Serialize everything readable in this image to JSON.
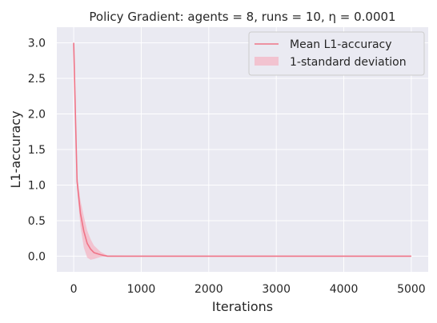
{
  "chart_data": {
    "type": "line",
    "title": "Policy Gradient: agents = 8, runs = 10, η = 0.0001",
    "xlabel": "Iterations",
    "ylabel": "L1-accuracy",
    "xlim": [
      -250,
      5250
    ],
    "ylim": [
      -0.22,
      3.22
    ],
    "xticks": [
      0,
      1000,
      2000,
      3000,
      4000,
      5000
    ],
    "xtick_labels": [
      "0",
      "1000",
      "2000",
      "3000",
      "4000",
      "5000"
    ],
    "yticks": [
      0.0,
      0.5,
      1.0,
      1.5,
      2.0,
      2.5,
      3.0
    ],
    "ytick_labels": [
      "0.0",
      "0.5",
      "1.0",
      "1.5",
      "2.0",
      "2.5",
      "3.0"
    ],
    "grid": true,
    "legend_position": "top-right",
    "colors": {
      "background": "#eaeaf2",
      "grid": "#ffffff",
      "line": "#f07487",
      "band": "#f4b6c4"
    },
    "series": [
      {
        "name": "Mean L1-accuracy",
        "style": "line",
        "x": [
          0,
          25,
          50,
          100,
          150,
          200,
          250,
          300,
          400,
          500,
          1000,
          2000,
          3000,
          4000,
          5000
        ],
        "y": [
          3.0,
          2.0,
          1.05,
          0.6,
          0.35,
          0.18,
          0.1,
          0.05,
          0.02,
          0.0,
          0.0,
          0.0,
          0.0,
          0.0,
          0.0
        ]
      },
      {
        "name": "1-standard deviation",
        "style": "band",
        "x": [
          0,
          25,
          50,
          100,
          150,
          200,
          250,
          300,
          400,
          500,
          1000,
          2000,
          3000,
          4000,
          5000
        ],
        "lower": [
          3.0,
          1.9,
          0.95,
          0.42,
          0.12,
          -0.02,
          -0.05,
          -0.04,
          -0.01,
          0.0,
          0.0,
          0.0,
          0.0,
          0.0,
          0.0
        ],
        "upper": [
          3.0,
          2.1,
          1.15,
          0.78,
          0.56,
          0.36,
          0.24,
          0.15,
          0.06,
          0.01,
          0.0,
          0.0,
          0.0,
          0.0,
          0.0
        ]
      }
    ]
  }
}
